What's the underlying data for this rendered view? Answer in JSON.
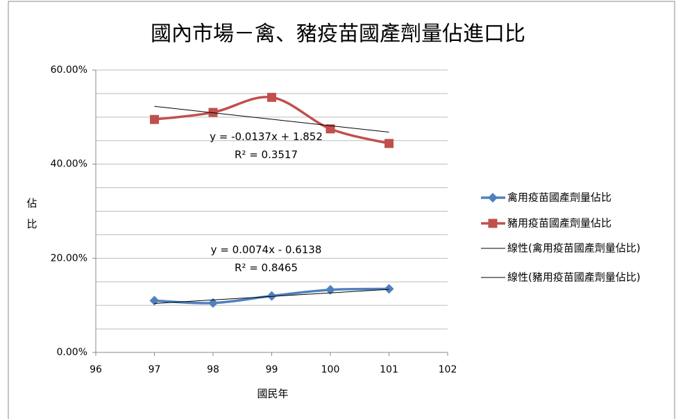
{
  "chart_data": {
    "type": "line",
    "title": "國內市場－禽、豬疫苗國產劑量佔進口比",
    "x_label": "國民年",
    "y_label": "佔比",
    "x": [
      97,
      98,
      99,
      100,
      101
    ],
    "series": [
      {
        "name": "禽用疫苗國產劑量佔比",
        "color": "#4f81bd",
        "marker": "diamond",
        "values": [
          11.0,
          10.5,
          12.0,
          13.3,
          13.5
        ]
      },
      {
        "name": "豬用疫苗國產劑量佔比",
        "color": "#c0504d",
        "marker": "square",
        "values": [
          49.5,
          51.0,
          54.2,
          47.5,
          44.4
        ]
      },
      {
        "name": "線性(禽用疫苗國產劑量佔比)",
        "color": "#000000",
        "trend": true,
        "x": [
          97,
          101
        ],
        "values": [
          10.4,
          13.4
        ]
      },
      {
        "name": "線性(豬用疫苗國產劑量佔比)",
        "color": "#000000",
        "trend": true,
        "x": [
          97,
          101
        ],
        "values": [
          52.3,
          46.8
        ]
      }
    ],
    "annotations": [
      {
        "lines": [
          "y = -0.0137x + 1.852",
          "R² = 0.3517"
        ],
        "x": 99,
        "y": 44
      },
      {
        "lines": [
          "y = 0.0074x - 0.6138",
          "R² = 0.8465"
        ],
        "x": 99,
        "y": 20
      }
    ],
    "xlim": [
      96,
      102
    ],
    "xticks": [
      96,
      97,
      98,
      99,
      100,
      101,
      102
    ],
    "ylim": [
      0,
      60
    ],
    "yticks": [
      {
        "value": 0,
        "label": "0.00%"
      },
      {
        "value": 20,
        "label": "20.00%"
      },
      {
        "value": 40,
        "label": "40.00%"
      },
      {
        "value": 60,
        "label": "60.00%"
      }
    ],
    "ygrid": [
      5,
      10,
      15,
      20,
      25,
      30,
      35,
      40,
      45,
      50,
      55,
      60
    ],
    "legend": "right"
  }
}
